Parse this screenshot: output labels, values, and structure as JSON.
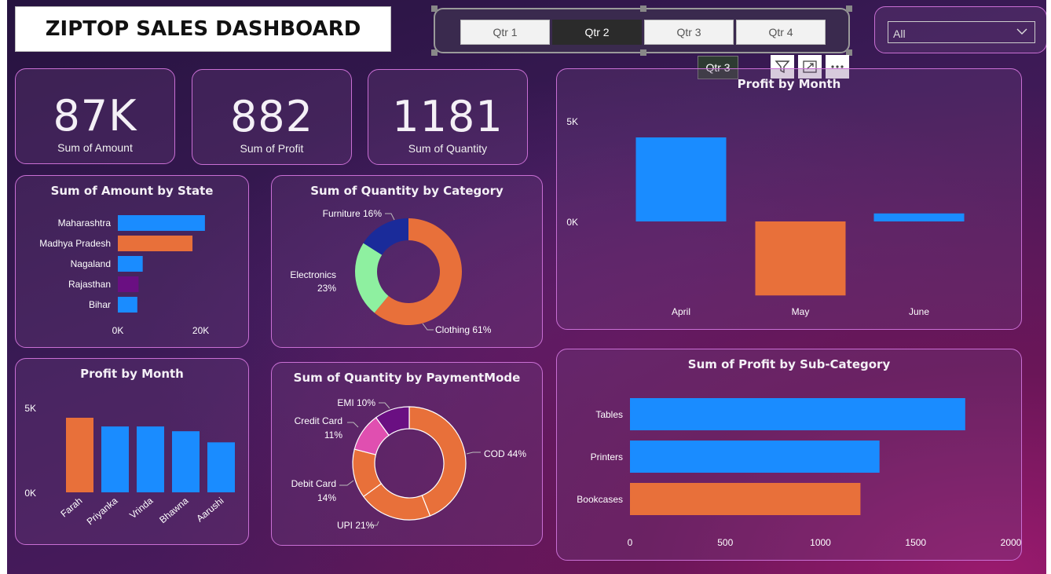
{
  "header": {
    "title": "ZIPTOP SALES DASHBOARD"
  },
  "quarter_slicer": {
    "buttons": [
      {
        "label": "Qtr 1",
        "selected": false
      },
      {
        "label": "Qtr 2",
        "selected": true
      },
      {
        "label": "Qtr 3",
        "selected": false
      },
      {
        "label": "Qtr 4",
        "selected": false
      }
    ]
  },
  "dropdown": {
    "value": "All"
  },
  "tooltip": {
    "text": "Qtr 3"
  },
  "kpis": [
    {
      "value": "87K",
      "label": "Sum of Amount"
    },
    {
      "value": "882",
      "label": "Sum of Profit"
    },
    {
      "value": "1181",
      "label": "Sum of Quantity"
    }
  ],
  "colors": {
    "blue": "#1a8cff",
    "orange": "#e8703a",
    "purple": "#6a0f82",
    "navy": "#1a2b9a",
    "green": "#8ef0a0",
    "pink": "#e04fb0"
  },
  "chart_data": [
    {
      "id": "amount_by_state",
      "type": "bar",
      "orientation": "horizontal",
      "title": "Sum of Amount by State",
      "categories": [
        "Maharashtra",
        "Madhya Pradesh",
        "Nagaland",
        "Rajasthan",
        "Bihar"
      ],
      "values": [
        21000,
        18000,
        6000,
        5000,
        4700
      ],
      "colors": [
        "#1a8cff",
        "#e8703a",
        "#1a8cff",
        "#6a0f82",
        "#1a8cff"
      ],
      "xlim": [
        0,
        25000
      ],
      "xticks": [
        "0K",
        "20K"
      ]
    },
    {
      "id": "quantity_by_category",
      "type": "pie",
      "donut": true,
      "title": "Sum of Quantity by Category",
      "categories": [
        "Clothing",
        "Electronics",
        "Furniture"
      ],
      "values": [
        61,
        23,
        16
      ],
      "labels": [
        "Clothing 61%",
        "Electronics",
        "23%",
        "Furniture 16%"
      ],
      "colors": [
        "#e8703a",
        "#8ef0a0",
        "#1a2b9a"
      ]
    },
    {
      "id": "profit_by_month_top",
      "type": "bar",
      "title": "Profit by Month",
      "categories": [
        "April",
        "May",
        "June"
      ],
      "values": [
        4200,
        -3700,
        400
      ],
      "colors": [
        "#1a8cff",
        "#e8703a",
        "#1a8cff"
      ],
      "ylim": [
        -4000,
        5000
      ],
      "yticks": [
        "5K",
        "0K"
      ]
    },
    {
      "id": "profit_by_person",
      "type": "bar",
      "title": "Profit by Month",
      "categories": [
        "Farah",
        "Priyanka",
        "Vrinda",
        "Bhawna",
        "Aarushi"
      ],
      "values": [
        4700,
        4150,
        4150,
        3850,
        3150
      ],
      "colors": [
        "#e8703a",
        "#1a8cff",
        "#1a8cff",
        "#1a8cff",
        "#1a8cff"
      ],
      "ylim": [
        0,
        5500
      ],
      "yticks": [
        "5K",
        "0K"
      ]
    },
    {
      "id": "quantity_by_payment",
      "type": "pie",
      "donut": true,
      "title": "Sum of Quantity by PaymentMode",
      "categories": [
        "COD",
        "UPI",
        "Debit Card",
        "Credit Card",
        "EMI"
      ],
      "values": [
        44,
        21,
        14,
        11,
        10
      ],
      "labels": [
        "COD 44%",
        "UPI 21%",
        "Debit Card",
        "14%",
        "Credit Card",
        "11%",
        "EMI 10%"
      ],
      "colors": [
        "#e8703a",
        "#e8703a",
        "#e8703a",
        "#e04fb0",
        "#6a0f82"
      ]
    },
    {
      "id": "profit_by_subcategory",
      "type": "bar",
      "orientation": "horizontal",
      "title": "Sum of Profit by Sub-Category",
      "categories": [
        "Tables",
        "Printers",
        "Bookcases"
      ],
      "values": [
        1760,
        1310,
        1210
      ],
      "colors": [
        "#1a8cff",
        "#1a8cff",
        "#e8703a"
      ],
      "xlim": [
        0,
        2000
      ],
      "xticks": [
        "0",
        "500",
        "1000",
        "1500",
        "2000"
      ]
    }
  ]
}
